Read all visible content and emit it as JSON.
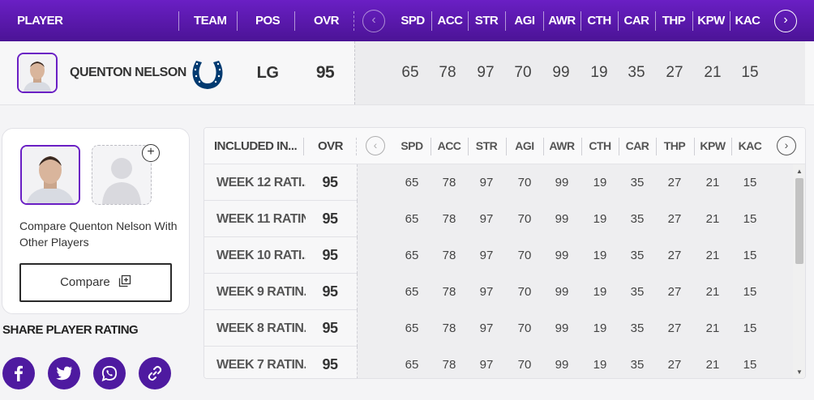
{
  "header": {
    "player": "PLAYER",
    "team": "TEAM",
    "pos": "POS",
    "ovr": "OVR",
    "prev": "‹",
    "next": "›",
    "stats": [
      "SPD",
      "ACC",
      "STR",
      "AGI",
      "AWR",
      "CTH",
      "CAR",
      "THP",
      "KPW",
      "KAC"
    ]
  },
  "player": {
    "name": "QUENTON NELSON",
    "team_icon": "colts-horseshoe-icon",
    "team_color": "#003a70",
    "position": "LG",
    "ovr": "95",
    "stats": [
      "65",
      "78",
      "97",
      "70",
      "99",
      "19",
      "35",
      "27",
      "21",
      "15"
    ]
  },
  "compare": {
    "text": "Compare Quenton Nelson With Other Players",
    "plus": "+",
    "button": "Compare"
  },
  "share": {
    "title": "SHARE PLAYER RATING",
    "icons": [
      "facebook-icon",
      "twitter-icon",
      "whatsapp-icon",
      "link-icon"
    ]
  },
  "table": {
    "included": "INCLUDED IN...",
    "ovr": "OVR",
    "prev": "‹",
    "next": "›",
    "stats": [
      "SPD",
      "ACC",
      "STR",
      "AGI",
      "AWR",
      "CTH",
      "CAR",
      "THP",
      "KPW",
      "KAC"
    ],
    "rows": [
      {
        "label": "WEEK 12 RATI...",
        "ovr": "95",
        "stats": [
          "65",
          "78",
          "97",
          "70",
          "99",
          "19",
          "35",
          "27",
          "21",
          "15"
        ]
      },
      {
        "label": "WEEK 11 RATIN...",
        "ovr": "95",
        "stats": [
          "65",
          "78",
          "97",
          "70",
          "99",
          "19",
          "35",
          "27",
          "21",
          "15"
        ]
      },
      {
        "label": "WEEK 10 RATI...",
        "ovr": "95",
        "stats": [
          "65",
          "78",
          "97",
          "70",
          "99",
          "19",
          "35",
          "27",
          "21",
          "15"
        ]
      },
      {
        "label": "WEEK 9 RATIN...",
        "ovr": "95",
        "stats": [
          "65",
          "78",
          "97",
          "70",
          "99",
          "19",
          "35",
          "27",
          "21",
          "15"
        ]
      },
      {
        "label": "WEEK 8 RATIN...",
        "ovr": "95",
        "stats": [
          "65",
          "78",
          "97",
          "70",
          "99",
          "19",
          "35",
          "27",
          "21",
          "15"
        ]
      },
      {
        "label": "WEEK 7 RATIN...",
        "ovr": "95",
        "stats": [
          "65",
          "78",
          "97",
          "70",
          "99",
          "19",
          "35",
          "27",
          "21",
          "15"
        ]
      }
    ]
  },
  "colors": {
    "accent": "#5a18b0",
    "social": "#4e1aa0"
  }
}
